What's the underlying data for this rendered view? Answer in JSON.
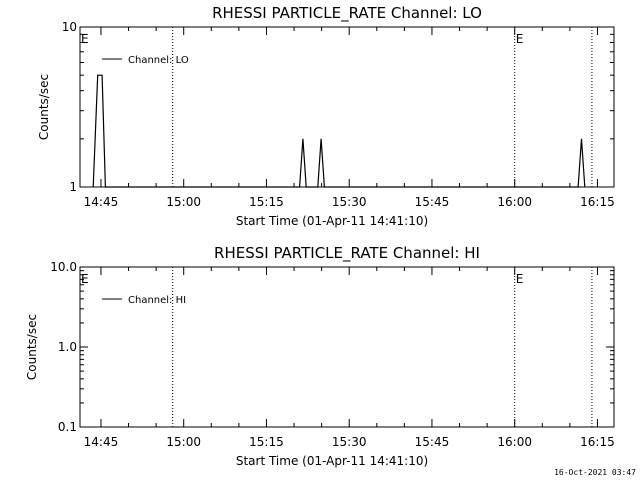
{
  "timestamp": "16-Oct-2021 03:47",
  "chart_data": [
    {
      "type": "line",
      "title": "RHESSI PARTICLE_RATE Channel: LO",
      "xlabel": "Start Time (01-Apr-11 14:41:10)",
      "ylabel": "Counts/sec",
      "yscale": "log",
      "ylim": [
        1,
        10
      ],
      "xlim_minutes": [
        41.2,
        138.0
      ],
      "x_ticks": [
        "14:45",
        "15:00",
        "15:15",
        "15:30",
        "15:45",
        "16:00",
        "16:15"
      ],
      "y_ticks": [
        "1",
        "10"
      ],
      "legend": "Channel: LO",
      "markers": [
        {
          "label": "E",
          "x": "14:41"
        },
        {
          "label": "E",
          "x": "16:00"
        }
      ],
      "vlines": [
        "14:58",
        "16:14"
      ],
      "series": [
        {
          "name": "Channel: LO",
          "x": [
            "14:43.6",
            "14:44.4",
            "14:45.2",
            "14:45.8",
            "14:46.6",
            "15:21.0",
            "15:21.6",
            "15:22.2",
            "15:24.3",
            "15:24.9",
            "15:25.5",
            "16:11.5",
            "16:12.1",
            "16:12.7"
          ],
          "values": [
            1,
            5,
            5,
            1,
            1,
            1,
            2,
            1,
            1,
            2,
            1,
            1,
            2,
            1
          ]
        }
      ],
      "grid": false
    },
    {
      "type": "line",
      "title": "RHESSI PARTICLE_RATE Channel: HI",
      "xlabel": "Start Time (01-Apr-11 14:41:10)",
      "ylabel": "Counts/sec",
      "yscale": "log",
      "ylim": [
        0.1,
        10.0
      ],
      "xlim_minutes": [
        41.2,
        138.0
      ],
      "x_ticks": [
        "14:45",
        "15:00",
        "15:15",
        "15:30",
        "15:45",
        "16:00",
        "16:15"
      ],
      "y_ticks": [
        "0.1",
        "1.0",
        "10.0"
      ],
      "legend": "Channel: HI",
      "markers": [
        {
          "label": "E",
          "x": "14:41"
        },
        {
          "label": "E",
          "x": "16:00"
        }
      ],
      "vlines": [
        "14:58",
        "16:14"
      ],
      "series": [
        {
          "name": "Channel: HI",
          "x": [],
          "values": []
        }
      ],
      "grid": false
    }
  ]
}
